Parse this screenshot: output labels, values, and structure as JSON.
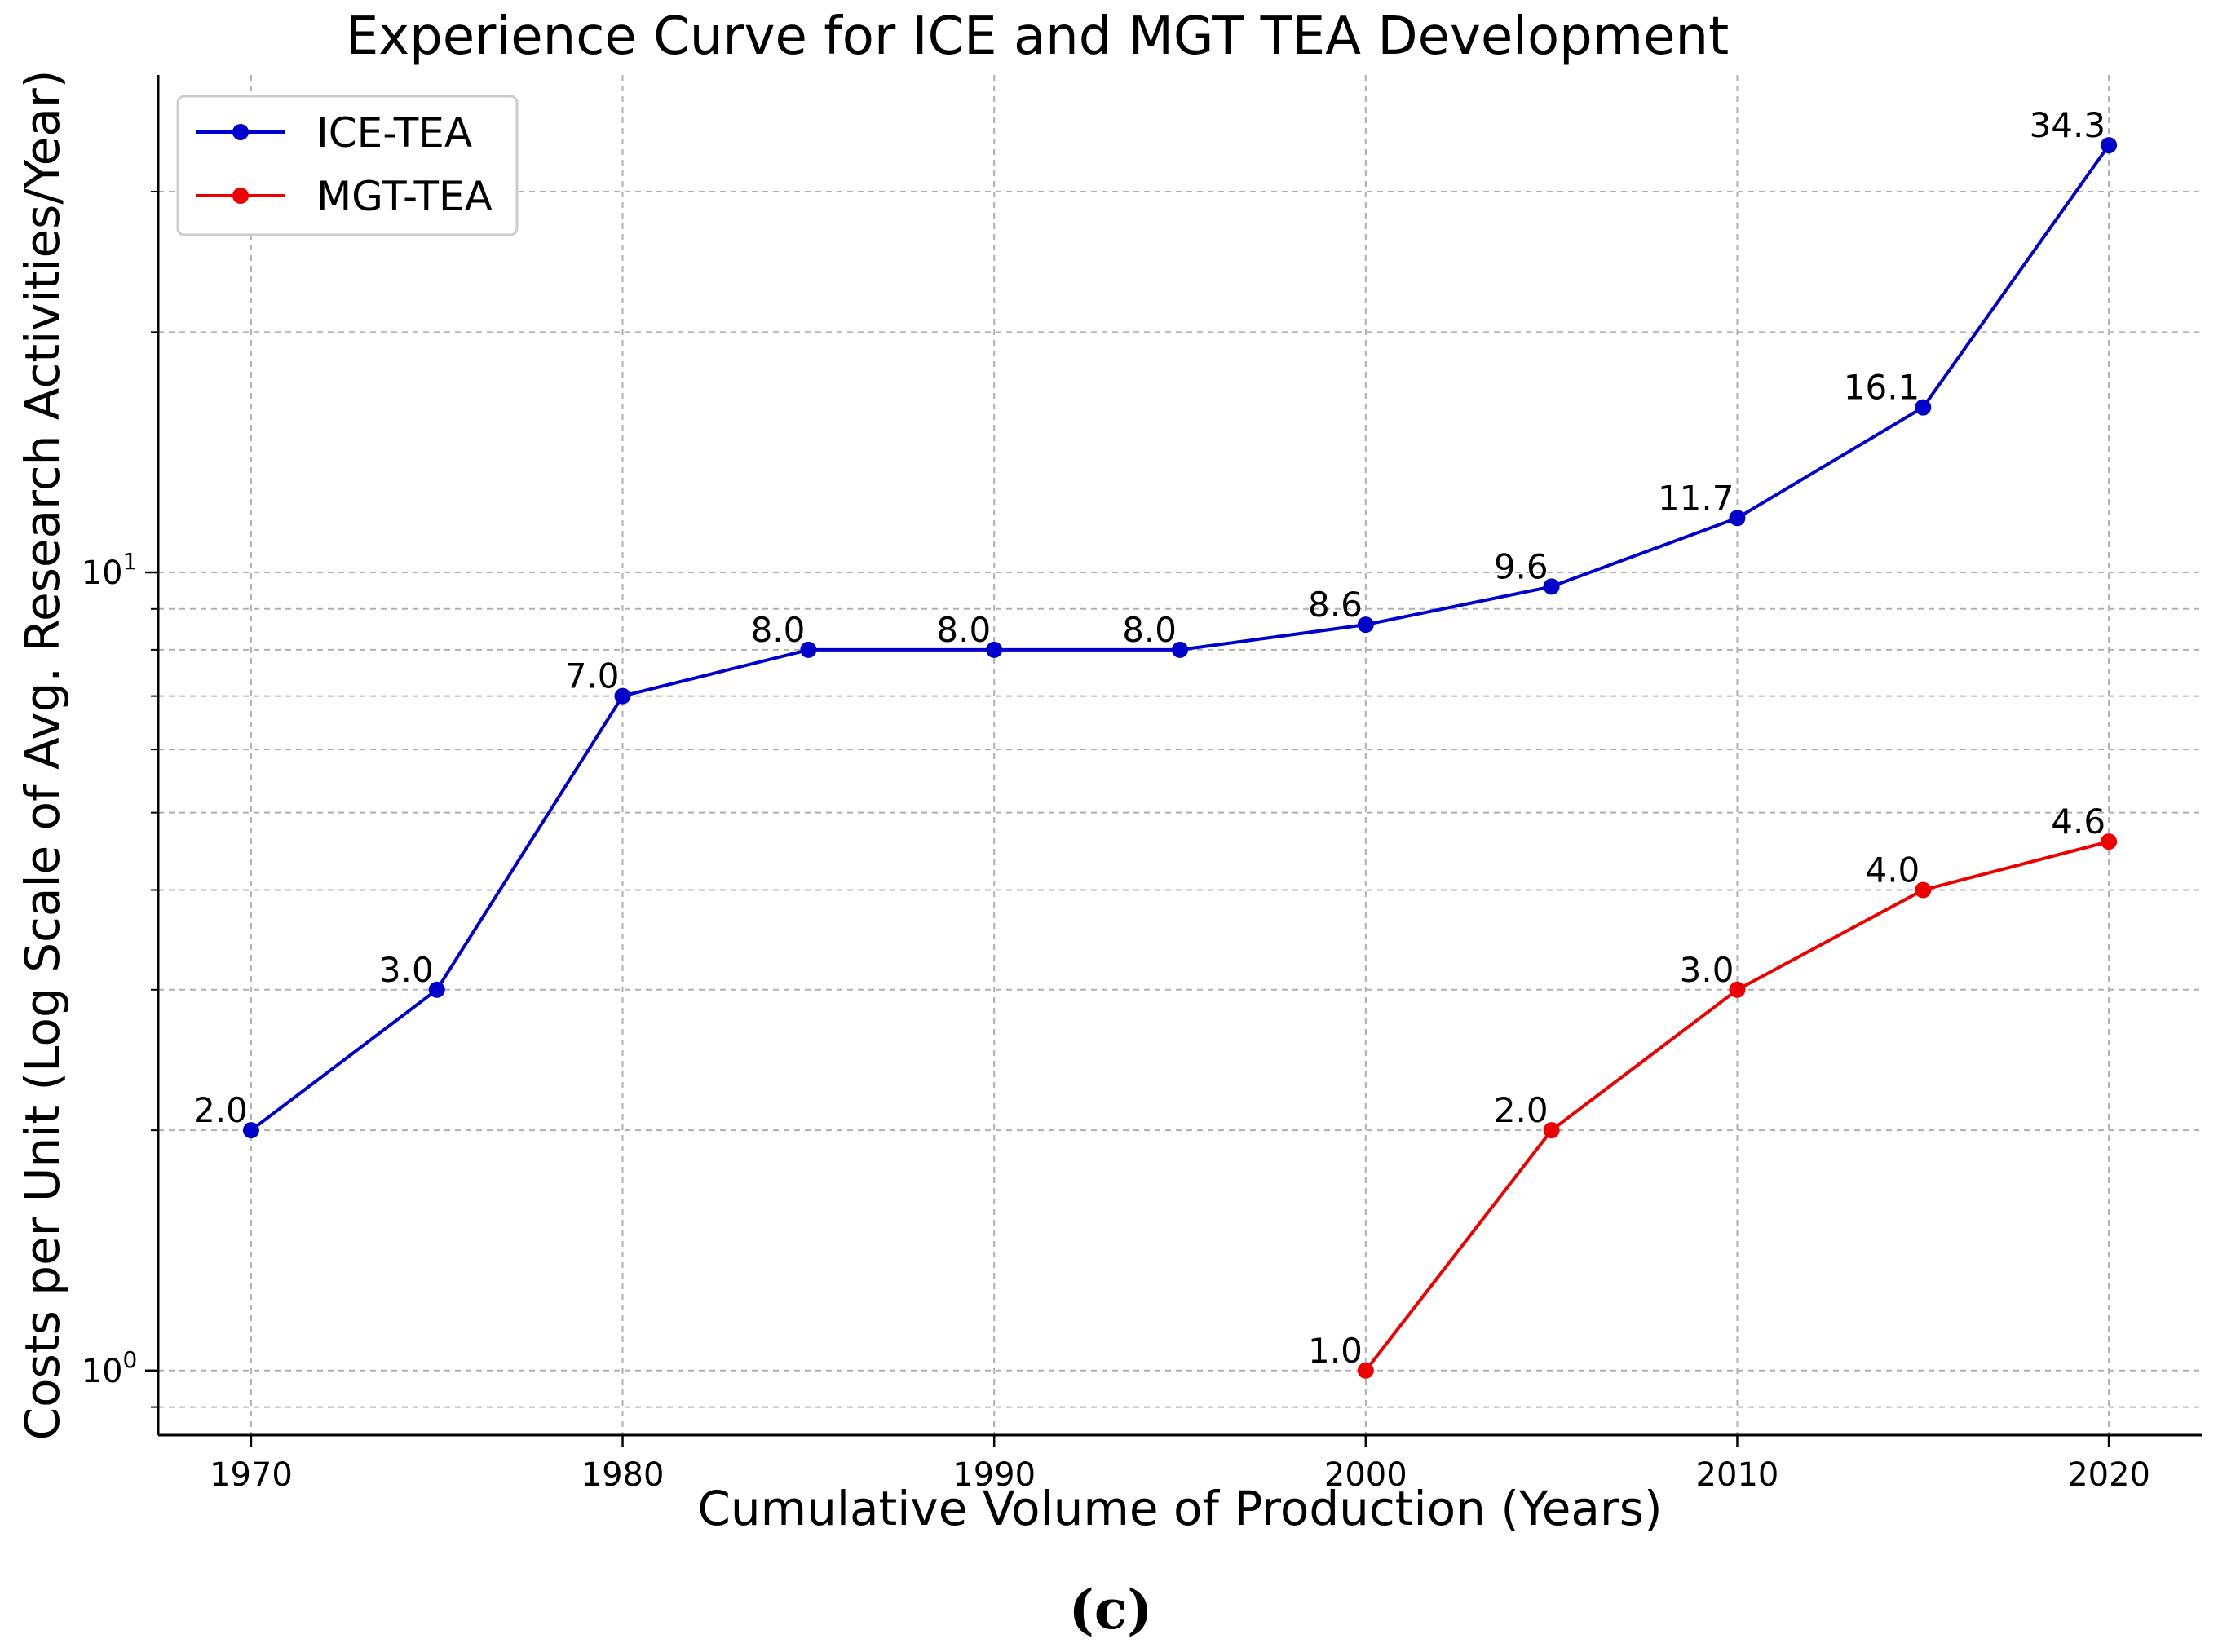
{
  "chart_data": {
    "type": "line",
    "title": "Experience Curve for ICE and MGT TEA Development",
    "xlabel": "Cumulative Volume of Production (Years)",
    "ylabel": "Costs per Unit (Log Scale of Avg. Research Activities/Year)",
    "yscale": "log",
    "xlim": [
      1967.5,
      2022.5
    ],
    "ylim": [
      0.83,
      42
    ],
    "x_ticks": [
      1970,
      1980,
      1990,
      2000,
      2010,
      2020
    ],
    "x_tick_labels": [
      "1970",
      "1980",
      "1990",
      "2000",
      "2010",
      "2020"
    ],
    "y_major_ticks": [
      1,
      10
    ],
    "y_tick_base": "10",
    "y_tick_exponents": [
      "0",
      "1"
    ],
    "y_minor_ticks": [
      0.9,
      2,
      3,
      4,
      5,
      6,
      7,
      8,
      9,
      20,
      30
    ],
    "grid": true,
    "legend_position": "top-left",
    "series": [
      {
        "name": "ICE-TEA",
        "color": "#0000cc",
        "x": [
          1970,
          1975,
          1980,
          1985,
          1990,
          1995,
          2000,
          2005,
          2010,
          2015,
          2020
        ],
        "values": [
          2.0,
          3.0,
          7.0,
          8.0,
          8.0,
          8.0,
          8.6,
          9.6,
          11.7,
          16.1,
          34.3
        ],
        "labels": [
          "2.0",
          "3.0",
          "7.0",
          "8.0",
          "8.0",
          "8.0",
          "8.6",
          "9.6",
          "11.7",
          "16.1",
          "34.3"
        ]
      },
      {
        "name": "MGT-TEA",
        "color": "#ee0000",
        "x": [
          2000,
          2005,
          2010,
          2015,
          2020
        ],
        "values": [
          1.0,
          2.0,
          3.0,
          4.0,
          4.6
        ],
        "labels": [
          "1.0",
          "2.0",
          "3.0",
          "4.0",
          "4.6"
        ]
      }
    ]
  },
  "caption": "(c)"
}
